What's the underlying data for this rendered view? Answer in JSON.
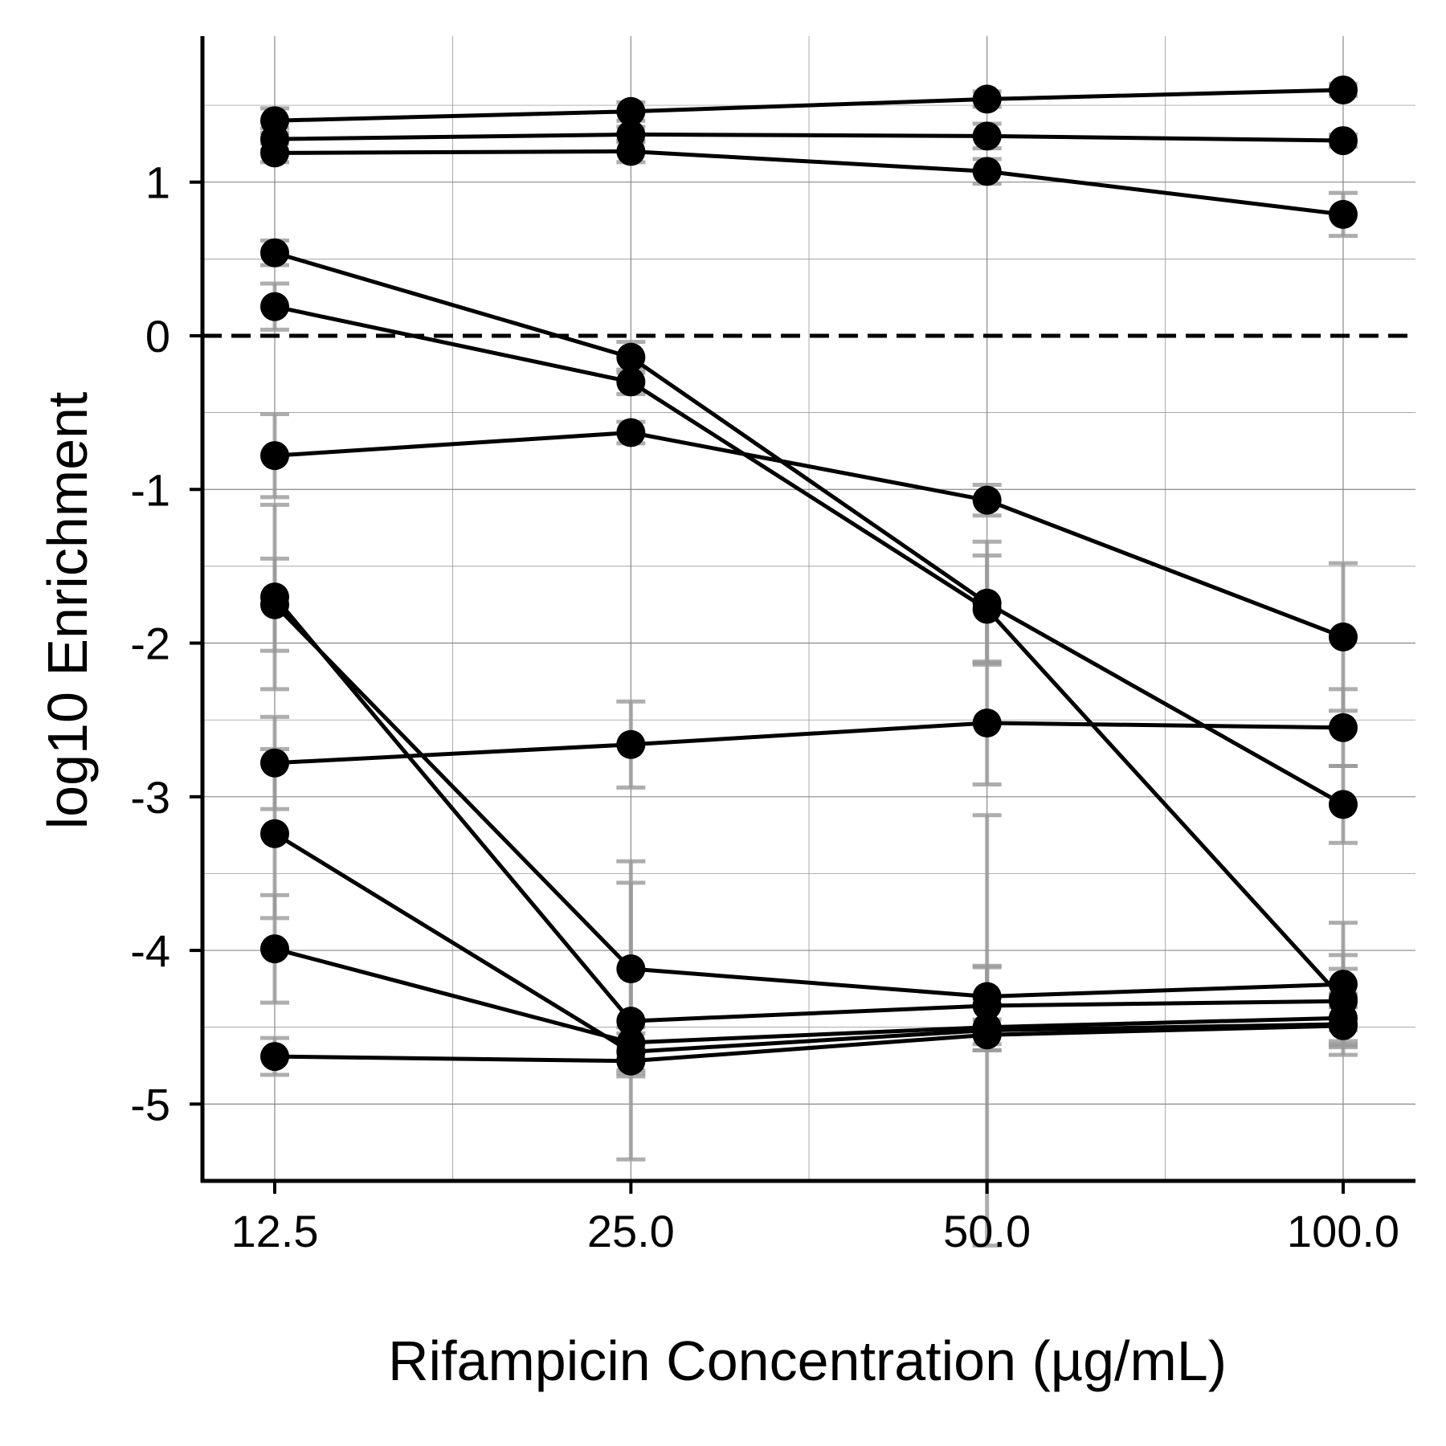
{
  "chart_data": {
    "type": "line",
    "xlabel": "Rifampicin Concentration (µg/mL)",
    "ylabel": "log10 Enrichment",
    "x": [
      12.5,
      25.0,
      50.0,
      100.0
    ],
    "x_tick_labels": [
      "12.5",
      "25.0",
      "50.0",
      "100.0"
    ],
    "x_scale": "log2",
    "ylim": [
      -5.5,
      1.95
    ],
    "y_ticks": [
      1,
      0,
      -1,
      -2,
      -3,
      -4,
      -5
    ],
    "y_tick_labels": [
      "1",
      "0",
      "-1",
      "-2",
      "-3",
      "-4",
      "-5"
    ],
    "reference_line": {
      "y": 0,
      "style": "dashed"
    },
    "grid": true,
    "legend": "none",
    "colors": {
      "series": "#000000",
      "errorbar": "#9a9a9a",
      "grid": "#888888"
    },
    "series": [
      {
        "values": [
          1.4,
          1.46,
          1.54,
          1.6
        ],
        "err": [
          0.08,
          0.06,
          0.05,
          0.04
        ]
      },
      {
        "values": [
          1.28,
          1.31,
          1.3,
          1.27
        ],
        "err": [
          0.07,
          0.05,
          0.08,
          0.04
        ]
      },
      {
        "values": [
          1.19,
          1.2,
          1.07,
          0.79
        ],
        "err": [
          0.06,
          0.07,
          0.08,
          0.14
        ]
      },
      {
        "values": [
          0.54,
          -0.14,
          -1.74,
          -3.05
        ],
        "err": [
          0.08,
          0.1,
          0.4,
          0.25
        ]
      },
      {
        "values": [
          0.19,
          -0.3,
          -1.78,
          -4.32
        ],
        "err": [
          0.15,
          0.08,
          0.35,
          0.2
        ]
      },
      {
        "values": [
          -0.78,
          -0.63,
          -1.07,
          -1.96
        ],
        "err": [
          0.27,
          0.07,
          0.1,
          0.48
        ]
      },
      {
        "values": [
          -1.7,
          -4.46,
          -4.36,
          -4.33
        ],
        "err": [
          0.6,
          0.9,
          0.25,
          0.3
        ]
      },
      {
        "values": [
          -1.75,
          -4.12,
          -4.3,
          -4.22
        ],
        "err": [
          0.3,
          0.7,
          0.2,
          0.4
        ]
      },
      {
        "values": [
          -2.78,
          -2.66,
          -2.52,
          -2.55
        ],
        "err": [
          0.3,
          0.28,
          0.4,
          0.25
        ]
      },
      {
        "values": [
          -3.24,
          -4.66,
          -4.52,
          -4.48
        ],
        "err": [
          0.55,
          0.12,
          1.4,
          0.2
        ]
      },
      {
        "values": [
          -3.99,
          -4.6,
          -4.5,
          -4.44
        ],
        "err": [
          0.35,
          0.1,
          0.15,
          0.15
        ]
      },
      {
        "values": [
          -4.69,
          -4.72,
          -4.55,
          -4.49
        ],
        "err": [
          0.12,
          0.08,
          0.1,
          0.12
        ]
      }
    ]
  }
}
